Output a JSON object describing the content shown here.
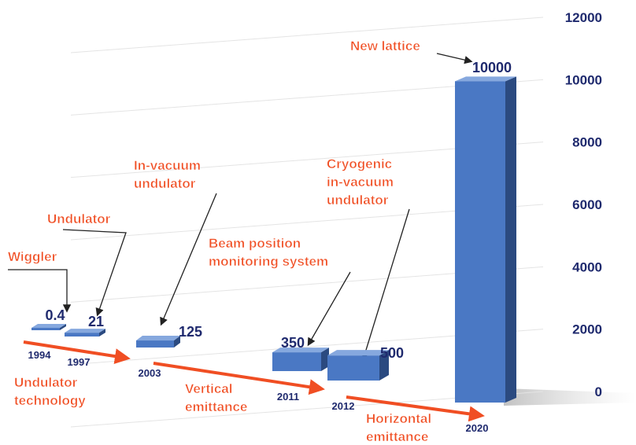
{
  "chart_data": {
    "type": "bar",
    "categories": [
      "1994",
      "1997",
      "2003",
      "2011",
      "2012",
      "2020"
    ],
    "values": [
      0.4,
      21,
      125,
      350,
      500,
      10000
    ],
    "color": "#4a78c4",
    "ylim": [
      0,
      12000
    ],
    "yticks": [
      0,
      2000,
      4000,
      6000,
      8000,
      10000,
      12000
    ],
    "grid": true,
    "annotations": [
      {
        "text": [
          "Wiggler"
        ]
      },
      {
        "text": [
          "Undulator"
        ]
      },
      {
        "text": [
          "In-vacuum",
          "undulator"
        ]
      },
      {
        "text": [
          "Beam position",
          "monitoring system"
        ]
      },
      {
        "text": [
          "Cryogenic",
          "in-vacuum",
          "undulator"
        ]
      },
      {
        "text": [
          "New lattice"
        ]
      }
    ],
    "phases": [
      {
        "text": [
          "Undulator",
          "technology"
        ]
      },
      {
        "text": [
          "Vertical",
          "emittance"
        ]
      },
      {
        "text": [
          "Horizontal",
          "emittance"
        ]
      }
    ]
  }
}
